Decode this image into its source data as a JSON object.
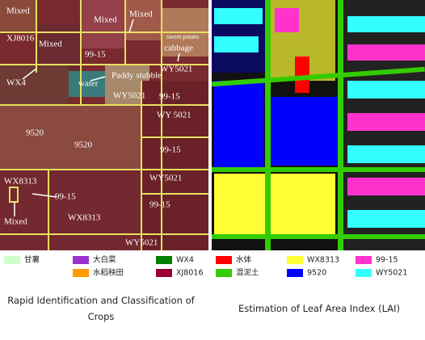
{
  "left_image": {
    "labels": [
      "Mixed",
      "Mixed",
      "Mixed",
      "XJ8016",
      "Mixed",
      "99-15",
      "sweet potato",
      "cabbage",
      "WY5021",
      "Paddy stubble",
      "water",
      "WX4",
      "WY5021",
      "99-15",
      "WY 5021",
      "9520",
      "9520",
      "99-15",
      "WX8313",
      "WY5021",
      "99-15",
      "99-15",
      "WX8313",
      "Mixed",
      "WY5021"
    ]
  },
  "legend": [
    {
      "label": "甘薯",
      "color": "#ccffcc"
    },
    {
      "label": "大白菜",
      "color": "#9933cc"
    },
    {
      "label": "水稻秧田",
      "color": "#ff9900"
    },
    {
      "label": "WX4",
      "color": "#008000"
    },
    {
      "label": "XJ8016",
      "color": "#990033"
    },
    {
      "label": "水体",
      "color": "#ff0000"
    },
    {
      "label": "混泥土",
      "color": "#33cc00"
    },
    {
      "label": "WX8313",
      "color": "#ffff33"
    },
    {
      "label": "9520",
      "color": "#0000ff"
    },
    {
      "label": "99-15",
      "color": "#ff33cc"
    },
    {
      "label": "WY5021",
      "color": "#33ffff"
    }
  ],
  "captions": [
    "Rapid Identification and Classification of Crops",
    "Estimation of Leaf Area Index (LAI)"
  ]
}
